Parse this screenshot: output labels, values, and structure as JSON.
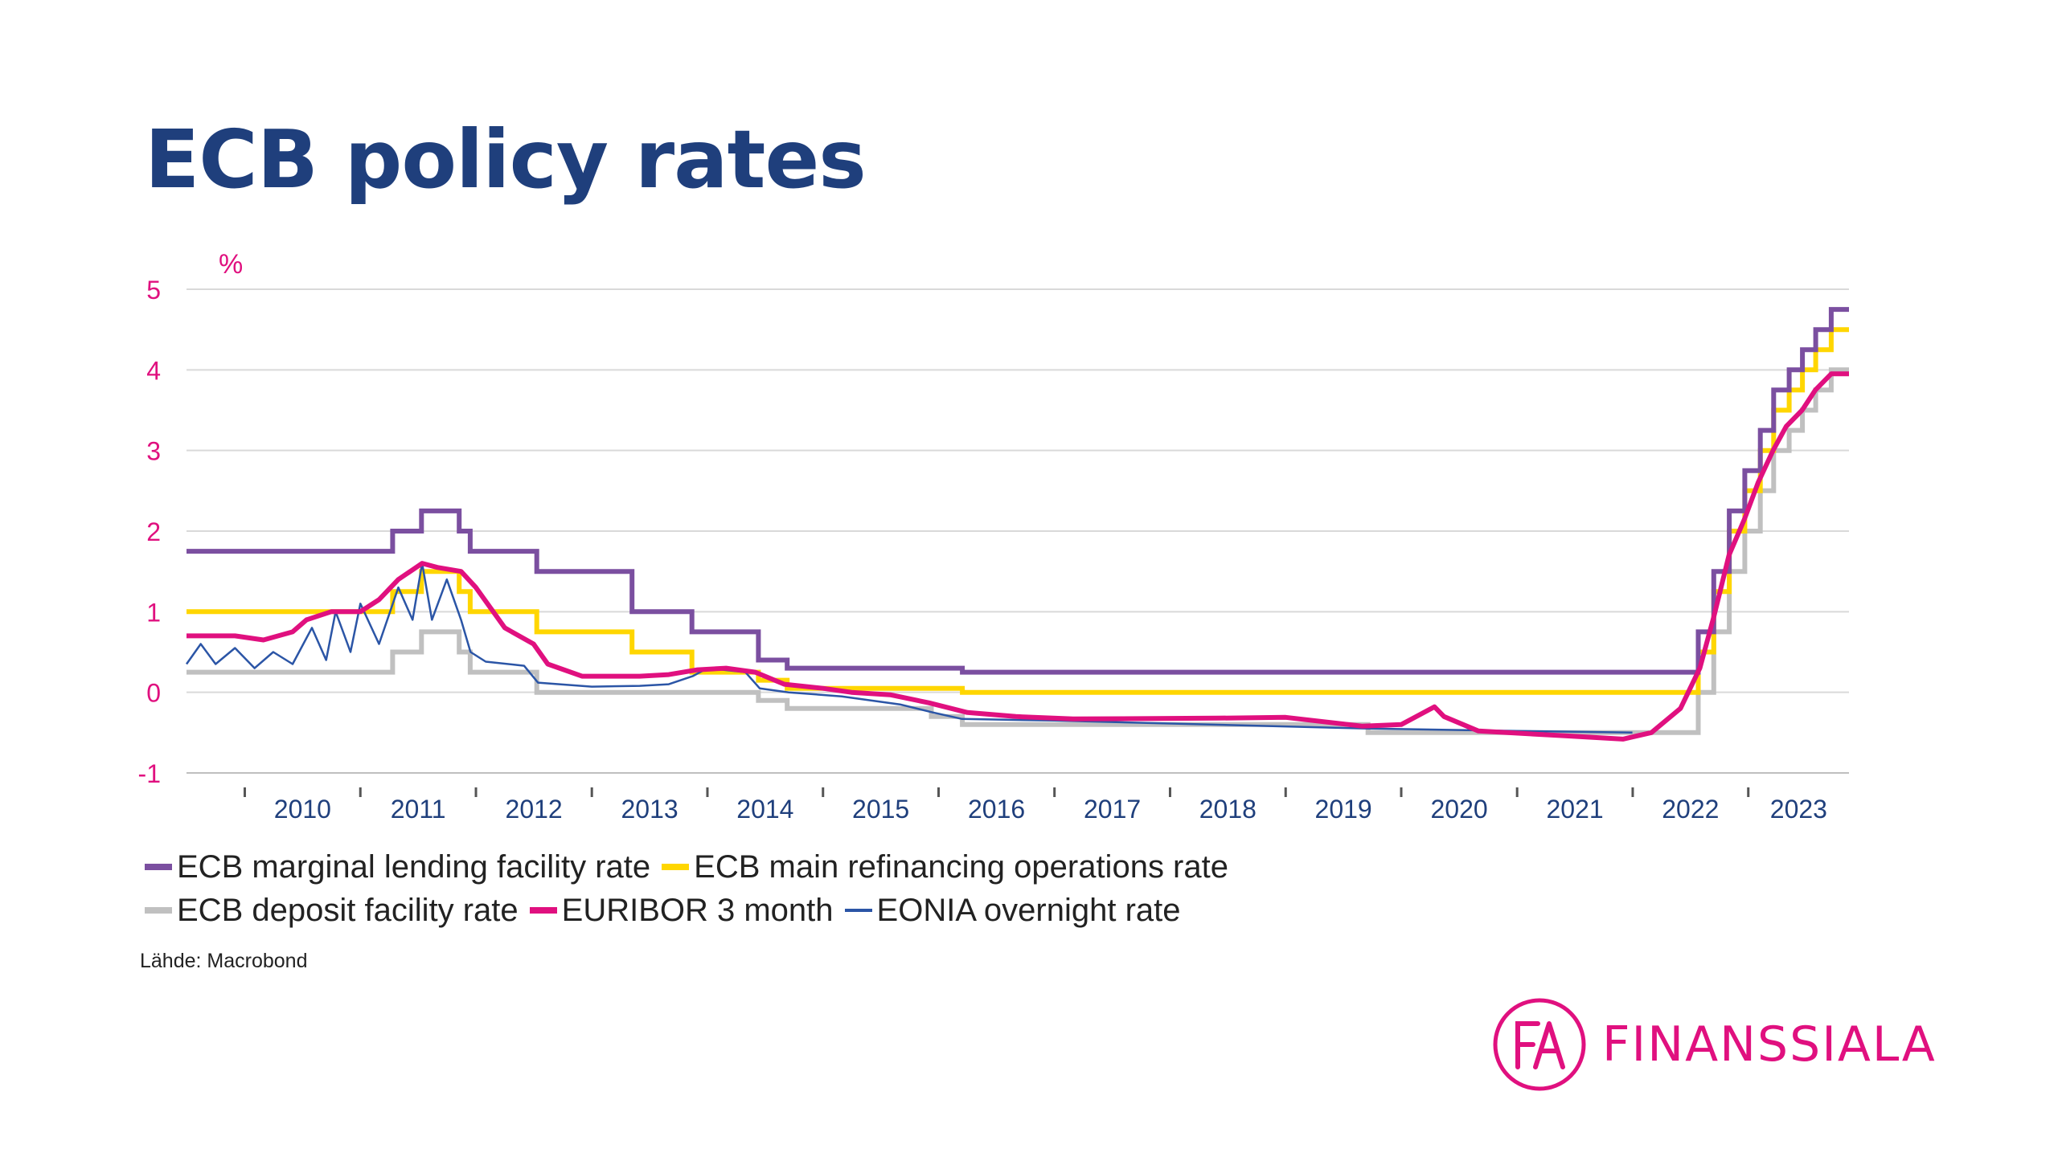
{
  "page": {
    "title": "ECB policy rates",
    "source": "Lähde: Macrobond"
  },
  "logo": {
    "monogram": "FA",
    "name": "FINANSSIALA"
  },
  "colors": {
    "title": "#1f3f7c",
    "accent": "#e0107f",
    "axis_text": "#1f3f7c",
    "y_tick_text": "#e0107f",
    "grid": "#d9d9d9"
  },
  "chart_data": {
    "type": "line",
    "title": "ECB policy rates",
    "ylabel": "%",
    "xlabel": "",
    "ylim": [
      -1,
      5
    ],
    "yticks": [
      5,
      4,
      3,
      2,
      1,
      0,
      -1
    ],
    "xlim": [
      "2009-07-01",
      "2023-11-15"
    ],
    "x_tick_labels": [
      "2010",
      "2011",
      "2012",
      "2013",
      "2014",
      "2015",
      "2016",
      "2017",
      "2018",
      "2019",
      "2020",
      "2021",
      "2022",
      "2023"
    ],
    "grid": true,
    "legend_position": "bottom",
    "series": [
      {
        "name": "ECB marginal lending facility rate",
        "color": "#7b4fa0",
        "width": 6,
        "step": true,
        "points": [
          [
            "2009-07-01",
            1.75
          ],
          [
            "2011-04-13",
            2.0
          ],
          [
            "2011-07-13",
            2.25
          ],
          [
            "2011-11-09",
            2.0
          ],
          [
            "2011-12-14",
            1.75
          ],
          [
            "2012-07-11",
            1.5
          ],
          [
            "2013-05-08",
            1.0
          ],
          [
            "2013-11-13",
            0.75
          ],
          [
            "2014-06-11",
            0.4
          ],
          [
            "2014-09-10",
            0.3
          ],
          [
            "2015-12-09",
            0.3
          ],
          [
            "2016-03-16",
            0.25
          ],
          [
            "2022-07-27",
            0.75
          ],
          [
            "2022-09-14",
            1.5
          ],
          [
            "2022-11-02",
            2.25
          ],
          [
            "2022-12-21",
            2.75
          ],
          [
            "2023-02-08",
            3.25
          ],
          [
            "2023-03-22",
            3.75
          ],
          [
            "2023-05-10",
            4.0
          ],
          [
            "2023-06-21",
            4.25
          ],
          [
            "2023-08-02",
            4.5
          ],
          [
            "2023-09-20",
            4.75
          ],
          [
            "2023-11-15",
            4.75
          ]
        ]
      },
      {
        "name": "ECB main refinancing operations rate",
        "color": "#ffd600",
        "width": 6,
        "step": true,
        "points": [
          [
            "2009-07-01",
            1.0
          ],
          [
            "2011-04-13",
            1.25
          ],
          [
            "2011-07-13",
            1.5
          ],
          [
            "2011-11-09",
            1.25
          ],
          [
            "2011-12-14",
            1.0
          ],
          [
            "2012-07-11",
            0.75
          ],
          [
            "2013-05-08",
            0.5
          ],
          [
            "2013-11-13",
            0.25
          ],
          [
            "2014-06-11",
            0.15
          ],
          [
            "2014-09-10",
            0.05
          ],
          [
            "2016-03-16",
            0.0
          ],
          [
            "2022-07-27",
            0.5
          ],
          [
            "2022-09-14",
            1.25
          ],
          [
            "2022-11-02",
            2.0
          ],
          [
            "2022-12-21",
            2.5
          ],
          [
            "2023-02-08",
            3.0
          ],
          [
            "2023-03-22",
            3.5
          ],
          [
            "2023-05-10",
            3.75
          ],
          [
            "2023-06-21",
            4.0
          ],
          [
            "2023-08-02",
            4.25
          ],
          [
            "2023-09-20",
            4.5
          ],
          [
            "2023-11-15",
            4.5
          ]
        ]
      },
      {
        "name": "ECB deposit facility rate",
        "color": "#c0c0c0",
        "width": 6,
        "step": true,
        "points": [
          [
            "2009-07-01",
            0.25
          ],
          [
            "2011-04-13",
            0.5
          ],
          [
            "2011-07-13",
            0.75
          ],
          [
            "2011-11-09",
            0.5
          ],
          [
            "2011-12-14",
            0.25
          ],
          [
            "2012-07-11",
            0.0
          ],
          [
            "2014-06-11",
            -0.1
          ],
          [
            "2014-09-10",
            -0.2
          ],
          [
            "2015-12-09",
            -0.3
          ],
          [
            "2016-03-16",
            -0.4
          ],
          [
            "2019-09-18",
            -0.5
          ],
          [
            "2022-07-27",
            0.0
          ],
          [
            "2022-09-14",
            0.75
          ],
          [
            "2022-11-02",
            1.5
          ],
          [
            "2022-12-21",
            2.0
          ],
          [
            "2023-02-08",
            2.5
          ],
          [
            "2023-03-22",
            3.0
          ],
          [
            "2023-05-10",
            3.25
          ],
          [
            "2023-06-21",
            3.5
          ],
          [
            "2023-08-02",
            3.75
          ],
          [
            "2023-09-20",
            4.0
          ],
          [
            "2023-11-15",
            4.0
          ]
        ]
      },
      {
        "name": "EURIBOR 3 month",
        "color": "#e0107f",
        "width": 6,
        "step": false,
        "points": [
          [
            "2009-07-01",
            0.7
          ],
          [
            "2009-12-01",
            0.7
          ],
          [
            "2010-03-01",
            0.65
          ],
          [
            "2010-06-01",
            0.75
          ],
          [
            "2010-07-15",
            0.9
          ],
          [
            "2010-10-01",
            1.0
          ],
          [
            "2011-01-01",
            1.0
          ],
          [
            "2011-03-01",
            1.15
          ],
          [
            "2011-05-01",
            1.4
          ],
          [
            "2011-07-15",
            1.6
          ],
          [
            "2011-09-01",
            1.55
          ],
          [
            "2011-11-15",
            1.5
          ],
          [
            "2012-01-01",
            1.3
          ],
          [
            "2012-04-01",
            0.8
          ],
          [
            "2012-07-01",
            0.6
          ],
          [
            "2012-08-15",
            0.35
          ],
          [
            "2012-12-01",
            0.2
          ],
          [
            "2013-06-01",
            0.2
          ],
          [
            "2013-09-01",
            0.22
          ],
          [
            "2013-12-01",
            0.28
          ],
          [
            "2014-03-01",
            0.3
          ],
          [
            "2014-06-01",
            0.25
          ],
          [
            "2014-09-01",
            0.1
          ],
          [
            "2015-01-01",
            0.05
          ],
          [
            "2015-04-01",
            0.0
          ],
          [
            "2015-08-01",
            -0.03
          ],
          [
            "2015-12-01",
            -0.13
          ],
          [
            "2016-04-01",
            -0.25
          ],
          [
            "2016-09-01",
            -0.3
          ],
          [
            "2017-03-01",
            -0.33
          ],
          [
            "2018-06-01",
            -0.32
          ],
          [
            "2019-01-01",
            -0.31
          ],
          [
            "2019-09-01",
            -0.42
          ],
          [
            "2020-01-01",
            -0.4
          ],
          [
            "2020-04-15",
            -0.18
          ],
          [
            "2020-05-15",
            -0.3
          ],
          [
            "2020-09-01",
            -0.48
          ],
          [
            "2021-06-01",
            -0.54
          ],
          [
            "2021-12-01",
            -0.58
          ],
          [
            "2022-03-01",
            -0.5
          ],
          [
            "2022-06-01",
            -0.2
          ],
          [
            "2022-08-01",
            0.3
          ],
          [
            "2022-09-15",
            0.95
          ],
          [
            "2022-11-01",
            1.7
          ],
          [
            "2022-12-20",
            2.15
          ],
          [
            "2023-02-01",
            2.6
          ],
          [
            "2023-03-20",
            3.0
          ],
          [
            "2023-05-01",
            3.3
          ],
          [
            "2023-06-20",
            3.5
          ],
          [
            "2023-08-01",
            3.75
          ],
          [
            "2023-09-20",
            3.95
          ],
          [
            "2023-11-15",
            3.95
          ]
        ]
      },
      {
        "name": "EONIA overnight rate",
        "color": "#2b55a6",
        "width": 2.5,
        "step": false,
        "points": [
          [
            "2009-07-01",
            0.35
          ],
          [
            "2009-08-15",
            0.6
          ],
          [
            "2009-10-01",
            0.35
          ],
          [
            "2009-12-01",
            0.55
          ],
          [
            "2010-02-01",
            0.3
          ],
          [
            "2010-04-01",
            0.5
          ],
          [
            "2010-06-01",
            0.35
          ],
          [
            "2010-08-01",
            0.8
          ],
          [
            "2010-09-15",
            0.4
          ],
          [
            "2010-10-15",
            1.0
          ],
          [
            "2010-12-01",
            0.5
          ],
          [
            "2011-01-01",
            1.1
          ],
          [
            "2011-03-01",
            0.6
          ],
          [
            "2011-05-01",
            1.3
          ],
          [
            "2011-06-15",
            0.9
          ],
          [
            "2011-07-15",
            1.6
          ],
          [
            "2011-08-15",
            0.9
          ],
          [
            "2011-10-01",
            1.4
          ],
          [
            "2011-11-15",
            0.9
          ],
          [
            "2011-12-15",
            0.5
          ],
          [
            "2012-02-01",
            0.38
          ],
          [
            "2012-06-01",
            0.33
          ],
          [
            "2012-07-15",
            0.12
          ],
          [
            "2013-01-01",
            0.07
          ],
          [
            "2013-06-01",
            0.08
          ],
          [
            "2013-09-01",
            0.1
          ],
          [
            "2013-11-15",
            0.2
          ],
          [
            "2014-01-01",
            0.3
          ],
          [
            "2014-05-01",
            0.25
          ],
          [
            "2014-06-15",
            0.05
          ],
          [
            "2014-09-15",
            0.0
          ],
          [
            "2015-03-01",
            -0.05
          ],
          [
            "2015-09-01",
            -0.15
          ],
          [
            "2015-12-15",
            -0.25
          ],
          [
            "2016-03-15",
            -0.33
          ],
          [
            "2017-01-01",
            -0.35
          ],
          [
            "2019-09-20",
            -0.45
          ],
          [
            "2021-01-01",
            -0.48
          ],
          [
            "2021-12-31",
            -0.5
          ]
        ]
      }
    ]
  }
}
